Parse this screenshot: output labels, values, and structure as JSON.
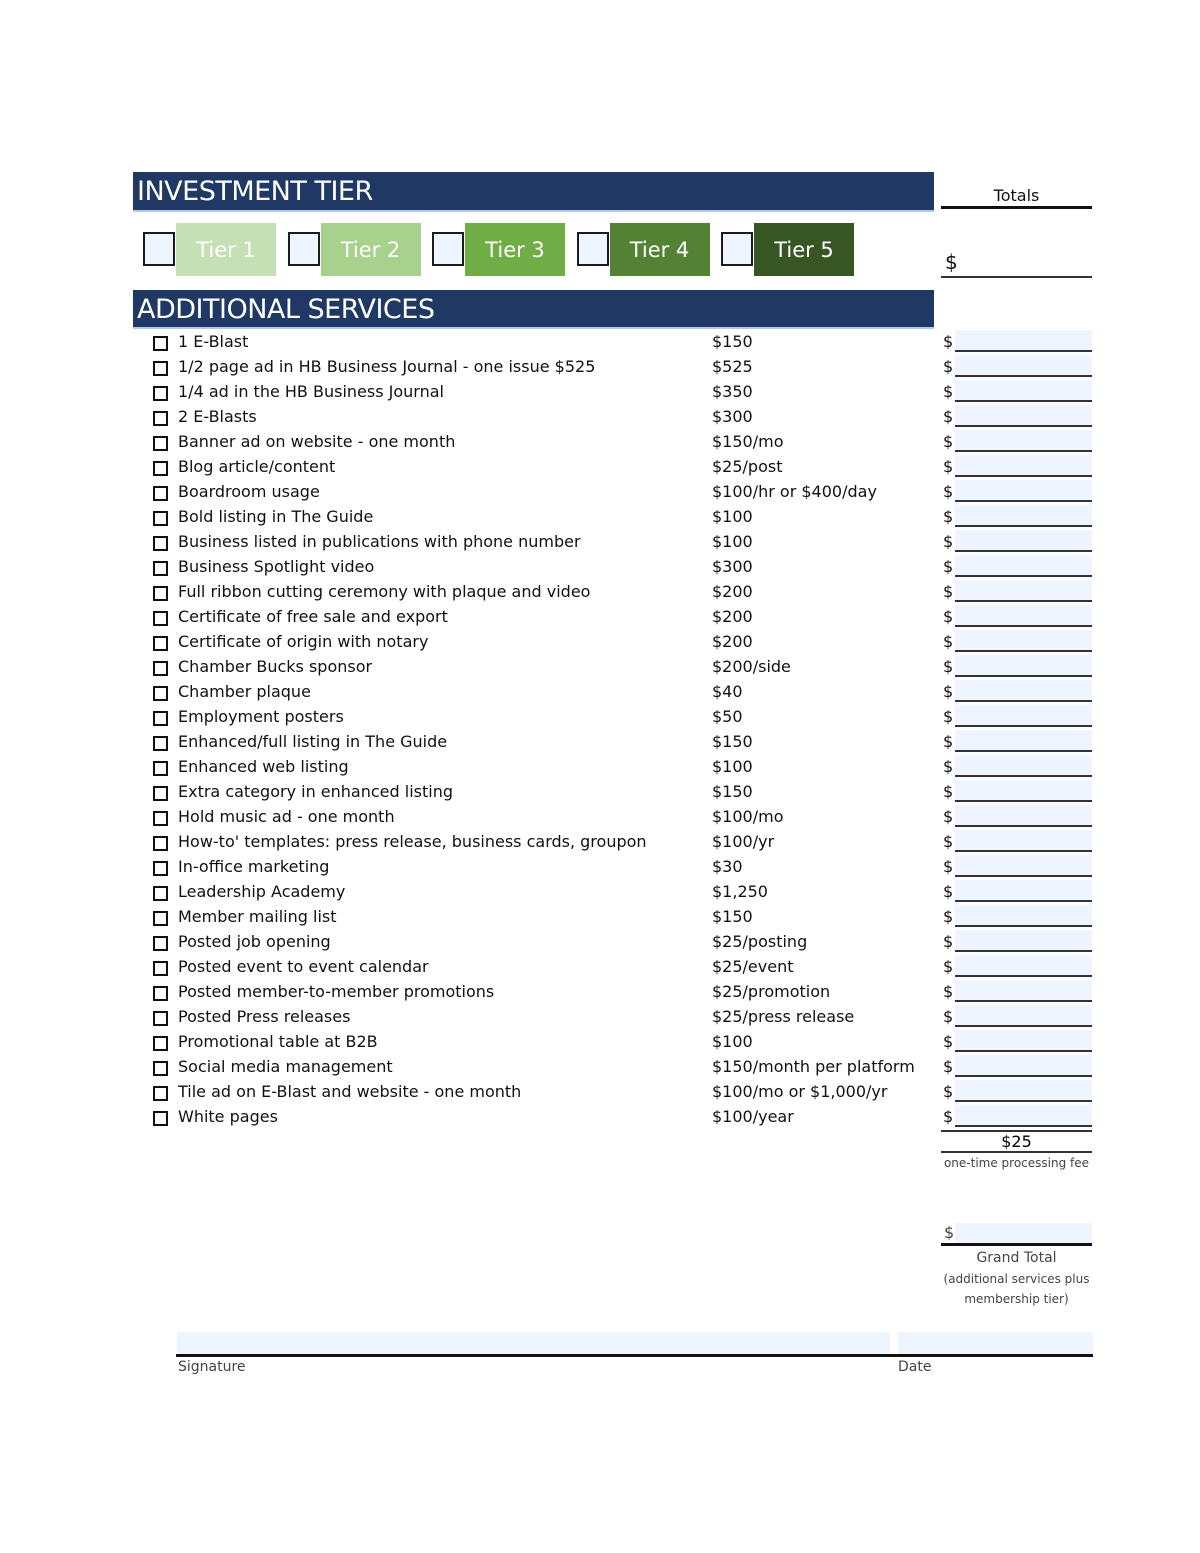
{
  "investment_tier": {
    "title": "INVESTMENT TIER",
    "tiers": [
      {
        "label": "Tier 1",
        "color": "#c5e0b4"
      },
      {
        "label": "Tier 2",
        "color": "#a9d18e"
      },
      {
        "label": "Tier 3",
        "color": "#70ad47"
      },
      {
        "label": "Tier 4",
        "color": "#548235"
      },
      {
        "label": "Tier 5",
        "color": "#375623"
      }
    ]
  },
  "totals": {
    "header": "Totals",
    "currency": "$"
  },
  "additional_services": {
    "title": "ADDITIONAL SERVICES",
    "items": [
      {
        "name": "1 E-Blast",
        "price": "$150"
      },
      {
        "name": "1/2 page ad in HB Business Journal - one issue $525",
        "price": "$525"
      },
      {
        "name": "1/4 ad in the HB Business Journal",
        "price": "$350"
      },
      {
        "name": "2 E-Blasts",
        "price": "$300"
      },
      {
        "name": "Banner ad on website - one month",
        "price": "$150/mo"
      },
      {
        "name": "Blog article/content",
        "price": "$25/post"
      },
      {
        "name": "Boardroom usage",
        "price": "$100/hr or $400/day"
      },
      {
        "name": "Bold listing in The Guide",
        "price": "$100"
      },
      {
        "name": "Business listed in publications with phone number",
        "price": "$100"
      },
      {
        "name": "Business Spotlight video",
        "price": "$300"
      },
      {
        "name": "Full ribbon cutting ceremony with plaque and video",
        "price": "$200"
      },
      {
        "name": "Certificate of free sale and export",
        "price": "$200"
      },
      {
        "name": "Certificate of origin with notary",
        "price": "$200"
      },
      {
        "name": "Chamber Bucks sponsor",
        "price": "$200/side"
      },
      {
        "name": "Chamber plaque",
        "price": "$40"
      },
      {
        "name": "Employment posters",
        "price": "$50"
      },
      {
        "name": "Enhanced/full listing in The Guide",
        "price": "$150"
      },
      {
        "name": "Enhanced web listing",
        "price": "$100"
      },
      {
        "name": "Extra category in enhanced listing",
        "price": "$150"
      },
      {
        "name": "Hold music ad - one month",
        "price": "$100/mo"
      },
      {
        "name": "How-to' templates: press release, business cards, groupon",
        "price": "$100/yr"
      },
      {
        "name": "In-office marketing",
        "price": "$30"
      },
      {
        "name": "Leadership Academy",
        "price": "$1,250"
      },
      {
        "name": "Member mailing list",
        "price": "$150"
      },
      {
        "name": "Posted job opening",
        "price": "$25/posting"
      },
      {
        "name": "Posted event to event calendar",
        "price": "$25/event"
      },
      {
        "name": "Posted member-to-member promotions",
        "price": "$25/promotion"
      },
      {
        "name": "Posted Press releases",
        "price": "$25/press release"
      },
      {
        "name": "Promotional table at B2B",
        "price": "$100"
      },
      {
        "name": "Social media management",
        "price": "$150/month per platform"
      },
      {
        "name": "Tile ad on E-Blast and website - one month",
        "price": "$100/mo or $1,000/yr"
      },
      {
        "name": "White pages",
        "price": "$100/year"
      }
    ]
  },
  "processing_fee": {
    "amount": "$25",
    "label": "one-time processing fee"
  },
  "grand_total": {
    "currency": "$",
    "label": "Grand Total",
    "note_line1": "(additional services plus",
    "note_line2": "membership tier)"
  },
  "signature": {
    "signature_label": "Signature",
    "date_label": "Date"
  }
}
